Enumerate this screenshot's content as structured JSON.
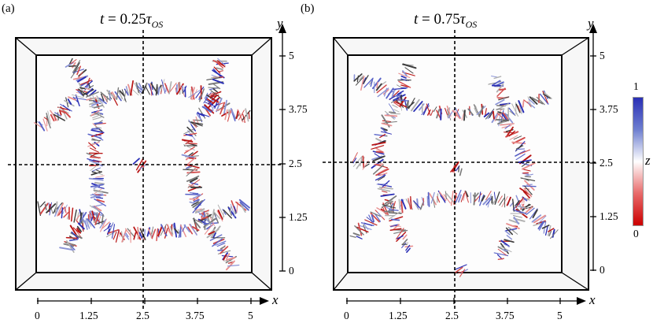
{
  "panels": [
    {
      "label": "(a)",
      "title_lhs": "t",
      "title_eq": " = 0.25",
      "title_tau": "τ",
      "title_sub": "OS",
      "x_ticks": [
        "0",
        "1.25",
        "2.5",
        "3.75",
        "5"
      ],
      "y_ticks": [
        "5",
        "3.75",
        "2.5",
        "1.25",
        "0"
      ],
      "x_axis": "x",
      "y_axis": "y"
    },
    {
      "label": "(b)",
      "title_lhs": "t",
      "title_eq": " = 0.75",
      "title_tau": "τ",
      "title_sub": "OS",
      "x_ticks": [
        "0",
        "1.25",
        "2.5",
        "3.75",
        "5"
      ],
      "y_ticks": [
        "5",
        "3.75",
        "2.5",
        "1.25",
        "0"
      ],
      "x_axis": "x",
      "y_axis": "y"
    }
  ],
  "colorbar": {
    "label": "z",
    "max": "1",
    "min": "0",
    "colors": {
      "high": "#2a2fb5",
      "mid": "#ffffff",
      "low": "#cc0000"
    }
  }
}
